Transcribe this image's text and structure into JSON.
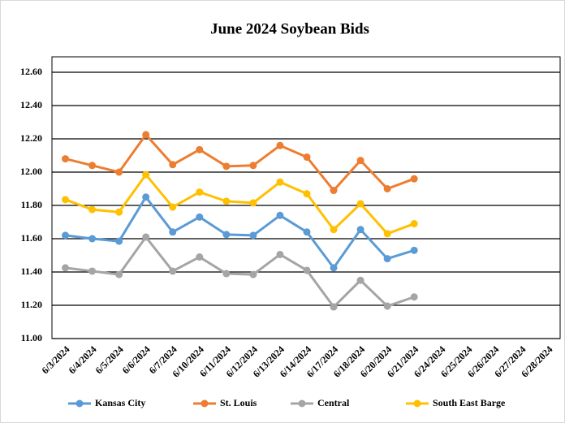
{
  "chart_data": {
    "type": "line",
    "title": "June 2024 Soybean Bids",
    "categories": [
      "6/3/2024",
      "6/4/2024",
      "6/5/2024",
      "6/6/2024",
      "6/7/2024",
      "6/10/2024",
      "6/11/2024",
      "6/12/2024",
      "6/13/2024",
      "6/14/2024",
      "6/17/2024",
      "6/18/2024",
      "6/20/2024",
      "6/21/2024",
      "6/24/2024",
      "6/25/2024",
      "6/26/2024",
      "6/27/2024",
      "6/28/2024"
    ],
    "series": [
      {
        "name": "Kansas City",
        "color": "#5b9bd5",
        "values": [
          11.62,
          11.6,
          11.585,
          11.85,
          11.64,
          11.73,
          11.625,
          11.62,
          11.74,
          11.64,
          11.425,
          11.655,
          11.48,
          11.53,
          null,
          null,
          null,
          null,
          null
        ]
      },
      {
        "name": "St. Louis",
        "color": "#ed7d31",
        "values": [
          12.08,
          12.04,
          12.0,
          12.225,
          12.045,
          12.135,
          12.035,
          12.04,
          12.16,
          12.09,
          11.89,
          12.07,
          11.9,
          11.96,
          null,
          null,
          null,
          null,
          null
        ]
      },
      {
        "name": "Central",
        "color": "#a5a5a5",
        "values": [
          11.425,
          11.405,
          11.385,
          11.61,
          11.405,
          11.49,
          11.39,
          11.385,
          11.505,
          11.41,
          11.19,
          11.35,
          11.195,
          11.25,
          null,
          null,
          null,
          null,
          null
        ]
      },
      {
        "name": "South East Barge",
        "color": "#ffc000",
        "values": [
          11.835,
          11.775,
          11.76,
          11.985,
          11.79,
          11.88,
          11.825,
          11.815,
          11.94,
          11.87,
          11.655,
          11.81,
          11.63,
          11.69,
          null,
          null,
          null,
          null,
          null
        ]
      }
    ],
    "ylim": [
      11.0,
      12.6
    ],
    "yticks": [
      {
        "value": 11.0,
        "label": "11.00"
      },
      {
        "value": 11.2,
        "label": "11.20"
      },
      {
        "value": 11.4,
        "label": "11.40"
      },
      {
        "value": 11.6,
        "label": "11.60"
      },
      {
        "value": 11.8,
        "label": "11.80"
      },
      {
        "value": 12.0,
        "label": "12.00"
      },
      {
        "value": 12.2,
        "label": "12.20"
      },
      {
        "value": 12.4,
        "label": "12.40"
      },
      {
        "value": 12.6,
        "label": "12.60"
      }
    ],
    "grid": true,
    "legend": "bottom"
  }
}
